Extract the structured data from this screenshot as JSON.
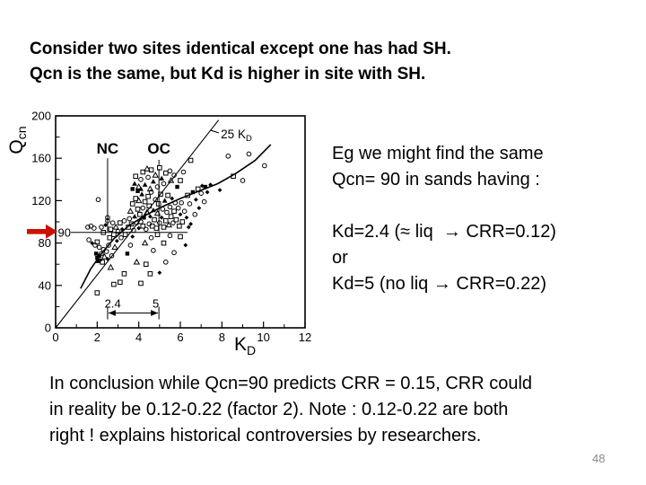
{
  "title": {
    "lines": [
      "Consider two sites identical except one has had SH.",
      "Qcn is the same, but Kd is higher in site with SH."
    ]
  },
  "right_note": {
    "lines": [
      "Eg we might find the same",
      "Qcn= 90 in sands having :",
      "",
      "Kd=2.4 (≈ liq  → CRR=0.12)",
      "or",
      "Kd=5 (no liq → CRR=0.22)"
    ]
  },
  "conclusion": {
    "lines": [
      "In conclusion while Qcn=90 predicts CRR = 0.15, CRR could",
      "in reality be 0.12-0.22 (factor 2). Note : 0.12-0.22 are both",
      "right ! explains historical controversies by researchers."
    ]
  },
  "page_number": "48",
  "colors": {
    "ink": "#000000",
    "arrow_red": "#cc1100",
    "page_number_gray": "#8a8a8a"
  },
  "chart_data": {
    "type": "scatter",
    "title": "",
    "xlabel_main": "K",
    "xlabel_sub": "D",
    "ylabel_main": "Q",
    "ylabel_sub": "cn",
    "xlim": [
      0,
      12
    ],
    "ylim": [
      0,
      200
    ],
    "x_ticks": [
      0,
      2,
      4,
      6,
      8,
      10,
      12
    ],
    "x_minor_ticks": [
      1,
      3,
      5,
      7,
      9,
      11
    ],
    "y_ticks": [
      0,
      40,
      80,
      120,
      160,
      200
    ],
    "y_minor_ticks": [
      20,
      60,
      100,
      140,
      180
    ],
    "grid": false,
    "annotations": {
      "ref_label": "90",
      "ref_y": 90,
      "ref_line_x_end": 6.35,
      "nc_label": "NC",
      "nc_x": 2.5,
      "nc_y_range": [
        91,
        160
      ],
      "oc_label": "OC",
      "oc_x": 4.97,
      "oc_y_range": [
        91,
        150
      ],
      "slope_line_label": "25 K",
      "slope_line_label_sub": "D",
      "slope": 25,
      "slope_line_y_end": 196,
      "dim_left_label": "2.4",
      "dim_right_label": "5",
      "dim_x_range": [
        2.5,
        4.97
      ],
      "dim_y": 14,
      "red_arrow_at_y": 90
    },
    "curve_points": [
      [
        1.2,
        37
      ],
      [
        1.7,
        56
      ],
      [
        2.2,
        70
      ],
      [
        2.8,
        84
      ],
      [
        3.5,
        96
      ],
      [
        4.3,
        106
      ],
      [
        5.1,
        114
      ],
      [
        6.0,
        122
      ],
      [
        6.9,
        129
      ],
      [
        7.8,
        136
      ],
      [
        8.7,
        146
      ],
      [
        9.6,
        158
      ],
      [
        10.35,
        173
      ]
    ],
    "marker_types": {
      "s": "open-square",
      "c": "open-circle",
      "t": "open-triangle",
      "T": "filled-triangle",
      "S": "filled-square",
      "d": "filled-diamond"
    },
    "points": [
      [
        3.5,
        95,
        "s"
      ],
      [
        3.55,
        103,
        "c"
      ],
      [
        3.6,
        110,
        "t"
      ],
      [
        3.65,
        98,
        "s"
      ],
      [
        3.7,
        117,
        "s"
      ],
      [
        3.75,
        92,
        "c"
      ],
      [
        3.8,
        105,
        "T"
      ],
      [
        3.85,
        122,
        "s"
      ],
      [
        3.9,
        99,
        "c"
      ],
      [
        3.95,
        112,
        "s"
      ],
      [
        4.0,
        94,
        "d"
      ],
      [
        4.0,
        120,
        "t"
      ],
      [
        4.05,
        107,
        "s"
      ],
      [
        4.1,
        100,
        "c"
      ],
      [
        4.15,
        126,
        "T"
      ],
      [
        4.2,
        96,
        "s"
      ],
      [
        4.2,
        113,
        "c"
      ],
      [
        4.25,
        104,
        "S"
      ],
      [
        4.3,
        119,
        "s"
      ],
      [
        4.35,
        93,
        "c"
      ],
      [
        4.4,
        109,
        "t"
      ],
      [
        4.45,
        124,
        "s"
      ],
      [
        4.5,
        98,
        "c"
      ],
      [
        4.5,
        115,
        "s"
      ],
      [
        4.55,
        105,
        "d"
      ],
      [
        4.6,
        128,
        "c"
      ],
      [
        4.65,
        96,
        "s"
      ],
      [
        4.7,
        111,
        "T"
      ],
      [
        4.75,
        102,
        "s"
      ],
      [
        4.8,
        121,
        "c"
      ],
      [
        4.85,
        94,
        "s"
      ],
      [
        4.9,
        108,
        "t"
      ],
      [
        4.95,
        117,
        "s"
      ],
      [
        5.0,
        99,
        "c"
      ],
      [
        5.05,
        126,
        "s"
      ],
      [
        5.1,
        104,
        "d"
      ],
      [
        5.15,
        112,
        "c"
      ],
      [
        5.2,
        95,
        "s"
      ],
      [
        5.25,
        120,
        "T"
      ],
      [
        5.3,
        101,
        "s"
      ],
      [
        5.35,
        109,
        "c"
      ],
      [
        5.4,
        125,
        "s"
      ],
      [
        5.45,
        97,
        "t"
      ],
      [
        5.5,
        114,
        "c"
      ],
      [
        5.55,
        105,
        "s"
      ],
      [
        5.6,
        122,
        "d"
      ],
      [
        5.65,
        99,
        "c"
      ],
      [
        5.7,
        110,
        "s"
      ],
      [
        5.75,
        118,
        "c"
      ],
      [
        5.8,
        102,
        "s"
      ],
      [
        5.9,
        113,
        "c"
      ],
      [
        5.95,
        96,
        "s"
      ],
      [
        6.0,
        107,
        "d"
      ],
      [
        6.05,
        118,
        "c"
      ],
      [
        6.1,
        100,
        "s"
      ],
      [
        3.8,
        136,
        "T"
      ],
      [
        3.85,
        143,
        "s"
      ],
      [
        4.0,
        133,
        "t"
      ],
      [
        4.1,
        140,
        "c"
      ],
      [
        4.2,
        147,
        "s"
      ],
      [
        4.3,
        135,
        "T"
      ],
      [
        4.4,
        150,
        "t"
      ],
      [
        4.45,
        142,
        "c"
      ],
      [
        4.55,
        131,
        "t"
      ],
      [
        4.6,
        149,
        "s"
      ],
      [
        4.7,
        138,
        "T"
      ],
      [
        4.8,
        144,
        "t"
      ],
      [
        4.9,
        133,
        "c"
      ],
      [
        5.0,
        151,
        "s"
      ],
      [
        5.1,
        141,
        "T"
      ],
      [
        5.2,
        136,
        "c"
      ],
      [
        5.3,
        146,
        "s"
      ],
      [
        5.5,
        148,
        "c"
      ],
      [
        5.55,
        139,
        "t"
      ],
      [
        5.7,
        144,
        "c"
      ],
      [
        6.0,
        139,
        "s"
      ],
      [
        6.15,
        147,
        "c"
      ],
      [
        6.5,
        158,
        "s"
      ],
      [
        5.85,
        133,
        "S"
      ],
      [
        3.7,
        131,
        "S"
      ],
      [
        3.95,
        129,
        "S"
      ],
      [
        4.1,
        131,
        "T"
      ],
      [
        1.55,
        95,
        "c"
      ],
      [
        1.7,
        96,
        "c"
      ],
      [
        1.85,
        94,
        "c"
      ],
      [
        1.6,
        83,
        "c"
      ],
      [
        1.75,
        80,
        "d"
      ],
      [
        1.9,
        78,
        "c"
      ],
      [
        2.0,
        81,
        "s"
      ],
      [
        2.1,
        76,
        "c"
      ],
      [
        1.95,
        70,
        "S"
      ],
      [
        2.0,
        66,
        "S"
      ],
      [
        2.05,
        63,
        "T"
      ],
      [
        2.1,
        68,
        "S"
      ],
      [
        2.15,
        64,
        "d"
      ],
      [
        2.2,
        70,
        "c"
      ],
      [
        2.25,
        62,
        "s"
      ],
      [
        2.3,
        74,
        "c"
      ],
      [
        2.35,
        67,
        "t"
      ],
      [
        2.45,
        72,
        "c"
      ],
      [
        2.5,
        65,
        "d"
      ],
      [
        2.55,
        78,
        "c"
      ],
      [
        2.6,
        85,
        "s"
      ],
      [
        2.2,
        95,
        "c"
      ],
      [
        2.3,
        90,
        "s"
      ],
      [
        2.4,
        97,
        "d"
      ],
      [
        2.5,
        101,
        "c"
      ],
      [
        2.65,
        93,
        "s"
      ],
      [
        2.75,
        99,
        "c"
      ],
      [
        2.8,
        88,
        "s"
      ],
      [
        2.9,
        95,
        "t"
      ],
      [
        3.0,
        91,
        "c"
      ],
      [
        3.1,
        99,
        "s"
      ],
      [
        3.2,
        93,
        "d"
      ],
      [
        3.3,
        101,
        "c"
      ],
      [
        3.35,
        88,
        "s"
      ],
      [
        3.15,
        85,
        "c"
      ],
      [
        2.95,
        82,
        "d"
      ],
      [
        2.85,
        76,
        "t"
      ],
      [
        2.7,
        68,
        "c"
      ],
      [
        2.05,
        121,
        "c"
      ],
      [
        2.5,
        104,
        "c"
      ],
      [
        2.0,
        33,
        "s"
      ],
      [
        2.8,
        41,
        "s"
      ],
      [
        3.1,
        43,
        "s"
      ],
      [
        3.3,
        51,
        "s"
      ],
      [
        4.1,
        42,
        "s"
      ],
      [
        4.55,
        51,
        "s"
      ],
      [
        3.9,
        62,
        "t"
      ],
      [
        4.35,
        60,
        "s"
      ],
      [
        4.7,
        73,
        "c"
      ],
      [
        5.0,
        52,
        "d"
      ],
      [
        5.3,
        62,
        "c"
      ],
      [
        5.7,
        71,
        "c"
      ],
      [
        6.25,
        78,
        "d"
      ],
      [
        5.2,
        80,
        "s"
      ],
      [
        5.5,
        87,
        "c"
      ],
      [
        6.0,
        86,
        "s"
      ],
      [
        6.4,
        95,
        "d"
      ],
      [
        4.3,
        80,
        "t"
      ],
      [
        4.6,
        85,
        "c"
      ],
      [
        4.9,
        88,
        "s"
      ],
      [
        3.6,
        78,
        "c"
      ],
      [
        3.45,
        70,
        "S"
      ],
      [
        2.65,
        57,
        "t"
      ],
      [
        3.7,
        86,
        "d"
      ],
      [
        6.2,
        110,
        "c"
      ],
      [
        6.3,
        104,
        "d"
      ],
      [
        6.35,
        125,
        "s"
      ],
      [
        6.45,
        117,
        "c"
      ],
      [
        6.5,
        98,
        "d"
      ],
      [
        6.6,
        128,
        "S"
      ],
      [
        6.7,
        107,
        "c"
      ],
      [
        6.75,
        121,
        "d"
      ],
      [
        6.85,
        131,
        "s"
      ],
      [
        6.9,
        113,
        "d"
      ],
      [
        7.0,
        127,
        "c"
      ],
      [
        7.05,
        134,
        "d"
      ],
      [
        7.15,
        119,
        "c"
      ],
      [
        7.2,
        133,
        "S"
      ],
      [
        7.3,
        128,
        "d"
      ],
      [
        7.45,
        135,
        "d"
      ],
      [
        8.3,
        162,
        "c"
      ],
      [
        9.3,
        164,
        "c"
      ],
      [
        10.05,
        153,
        "c"
      ],
      [
        8.55,
        143,
        "s"
      ],
      [
        9.0,
        139,
        "c"
      ],
      [
        7.9,
        130,
        "d"
      ]
    ]
  }
}
